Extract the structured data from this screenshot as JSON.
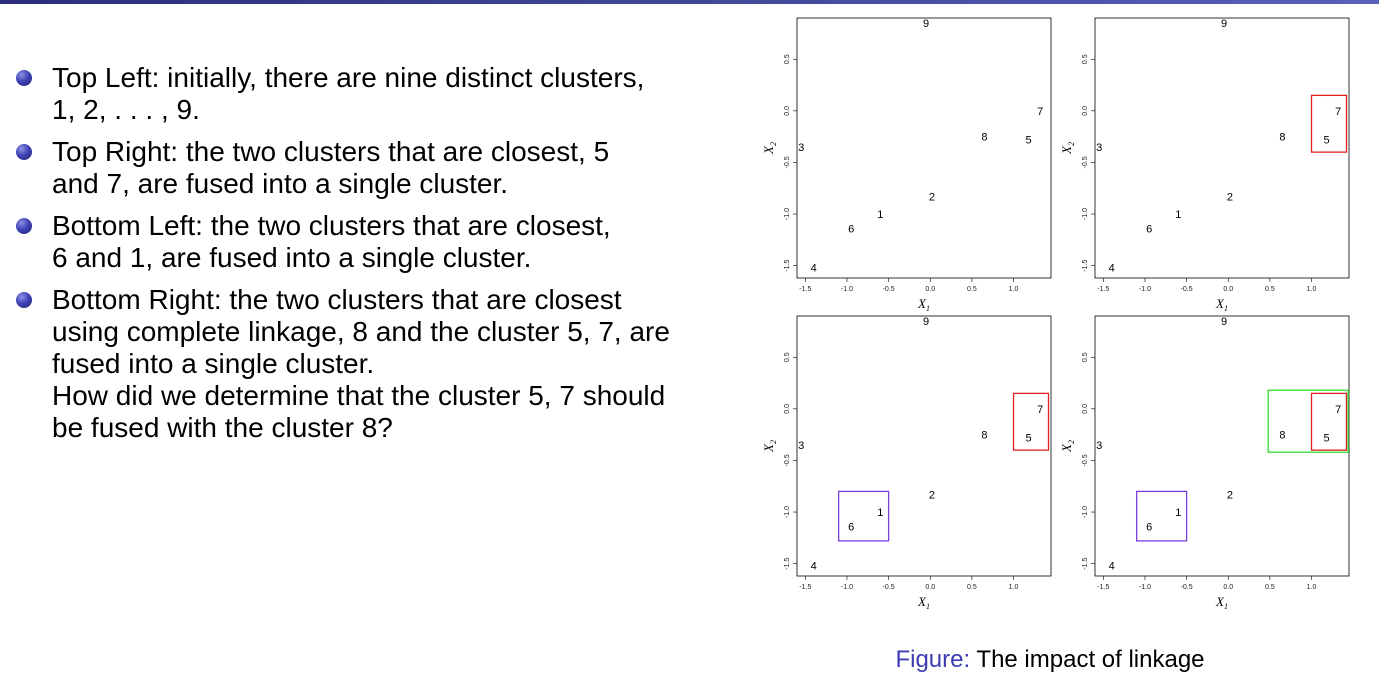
{
  "bullets": [
    {
      "text": "Top Left: initially, there are nine distinct clusters, 1, 2, . . . , 9."
    },
    {
      "text": "Top Right: the two clusters that are closest, 5 and 7, are fused into a single cluster."
    },
    {
      "text": "Bottom Left: the two clusters that are closest, 6 and 1, are fused into a single cluster."
    },
    {
      "text": "Bottom Right: the two clusters that are closest using complete linkage, 8 and the cluster 5, 7, are fused into a single cluster.",
      "extra": "How did we determine that the cluster 5, 7 should be fused with the cluster 8?"
    }
  ],
  "caption": {
    "label": "Figure:",
    "text": "The impact of linkage"
  },
  "chart_data": [
    {
      "type": "scatter",
      "panel": "top-left",
      "xlabel": "X1",
      "ylabel": "X2",
      "xlim": [
        -1.6,
        1.45
      ],
      "ylim": [
        -1.62,
        0.9
      ],
      "grid": false,
      "xticks": [
        "-1.5",
        "-1.0",
        "-0.5",
        "0.0",
        "0.5",
        "1.0"
      ],
      "yticks": [
        "-1.5",
        "-1.0",
        "-0.5",
        "0.0",
        "0.5"
      ],
      "points": [
        {
          "label": "1",
          "x": -0.6,
          "y": -1.0
        },
        {
          "label": "2",
          "x": 0.02,
          "y": -0.83
        },
        {
          "label": "3",
          "x": -1.55,
          "y": -0.35
        },
        {
          "label": "4",
          "x": -1.4,
          "y": -1.52
        },
        {
          "label": "5",
          "x": 1.18,
          "y": -0.28
        },
        {
          "label": "6",
          "x": -0.95,
          "y": -1.14
        },
        {
          "label": "7",
          "x": 1.32,
          "y": 0.0
        },
        {
          "label": "8",
          "x": 0.65,
          "y": -0.25
        },
        {
          "label": "9",
          "x": -0.05,
          "y": 0.85
        }
      ],
      "boxes": []
    },
    {
      "type": "scatter",
      "panel": "top-right",
      "xlabel": "X1",
      "ylabel": "X2",
      "xlim": [
        -1.6,
        1.45
      ],
      "ylim": [
        -1.62,
        0.9
      ],
      "grid": false,
      "xticks": [
        "-1.5",
        "-1.0",
        "-0.5",
        "0.0",
        "0.5",
        "1.0"
      ],
      "yticks": [
        "-1.5",
        "-1.0",
        "-0.5",
        "0.0",
        "0.5"
      ],
      "points": [
        {
          "label": "1",
          "x": -0.6,
          "y": -1.0
        },
        {
          "label": "2",
          "x": 0.02,
          "y": -0.83
        },
        {
          "label": "3",
          "x": -1.55,
          "y": -0.35
        },
        {
          "label": "4",
          "x": -1.4,
          "y": -1.52
        },
        {
          "label": "5",
          "x": 1.18,
          "y": -0.28
        },
        {
          "label": "6",
          "x": -0.95,
          "y": -1.14
        },
        {
          "label": "7",
          "x": 1.32,
          "y": 0.0
        },
        {
          "label": "8",
          "x": 0.65,
          "y": -0.25
        },
        {
          "label": "9",
          "x": -0.05,
          "y": 0.85
        }
      ],
      "boxes": [
        {
          "color": "#e02020",
          "x": [
            1.0,
            1.42
          ],
          "y": [
            -0.4,
            0.15
          ]
        }
      ]
    },
    {
      "type": "scatter",
      "panel": "bottom-left",
      "xlabel": "X1",
      "ylabel": "X2",
      "xlim": [
        -1.6,
        1.45
      ],
      "ylim": [
        -1.62,
        0.9
      ],
      "grid": false,
      "xticks": [
        "-1.5",
        "-1.0",
        "-0.5",
        "0.0",
        "0.5",
        "1.0"
      ],
      "yticks": [
        "-1.5",
        "-1.0",
        "-0.5",
        "0.0",
        "0.5"
      ],
      "points": [
        {
          "label": "1",
          "x": -0.6,
          "y": -1.0
        },
        {
          "label": "2",
          "x": 0.02,
          "y": -0.83
        },
        {
          "label": "3",
          "x": -1.55,
          "y": -0.35
        },
        {
          "label": "4",
          "x": -1.4,
          "y": -1.52
        },
        {
          "label": "5",
          "x": 1.18,
          "y": -0.28
        },
        {
          "label": "6",
          "x": -0.95,
          "y": -1.14
        },
        {
          "label": "7",
          "x": 1.32,
          "y": 0.0
        },
        {
          "label": "8",
          "x": 0.65,
          "y": -0.25
        },
        {
          "label": "9",
          "x": -0.05,
          "y": 0.85
        }
      ],
      "boxes": [
        {
          "color": "#e02020",
          "x": [
            1.0,
            1.42
          ],
          "y": [
            -0.4,
            0.15
          ]
        },
        {
          "color": "#7b3fe0",
          "x": [
            -1.1,
            -0.5
          ],
          "y": [
            -1.28,
            -0.8
          ]
        }
      ]
    },
    {
      "type": "scatter",
      "panel": "bottom-right",
      "xlabel": "X1",
      "ylabel": "X2",
      "xlim": [
        -1.6,
        1.45
      ],
      "ylim": [
        -1.62,
        0.9
      ],
      "grid": false,
      "xticks": [
        "-1.5",
        "-1.0",
        "-0.5",
        "0.0",
        "0.5",
        "1.0"
      ],
      "yticks": [
        "-1.5",
        "-1.0",
        "-0.5",
        "0.0",
        "0.5"
      ],
      "points": [
        {
          "label": "1",
          "x": -0.6,
          "y": -1.0
        },
        {
          "label": "2",
          "x": 0.02,
          "y": -0.83
        },
        {
          "label": "3",
          "x": -1.55,
          "y": -0.35
        },
        {
          "label": "4",
          "x": -1.4,
          "y": -1.52
        },
        {
          "label": "5",
          "x": 1.18,
          "y": -0.28
        },
        {
          "label": "6",
          "x": -0.95,
          "y": -1.14
        },
        {
          "label": "7",
          "x": 1.32,
          "y": 0.0
        },
        {
          "label": "8",
          "x": 0.65,
          "y": -0.25
        },
        {
          "label": "9",
          "x": -0.05,
          "y": 0.85
        }
      ],
      "boxes": [
        {
          "color": "#e02020",
          "x": [
            1.0,
            1.42
          ],
          "y": [
            -0.4,
            0.15
          ]
        },
        {
          "color": "#7b3fe0",
          "x": [
            -1.1,
            -0.5
          ],
          "y": [
            -1.28,
            -0.8
          ]
        },
        {
          "color": "#33dd33",
          "x": [
            0.48,
            1.44
          ],
          "y": [
            -0.42,
            0.18
          ]
        }
      ]
    }
  ]
}
